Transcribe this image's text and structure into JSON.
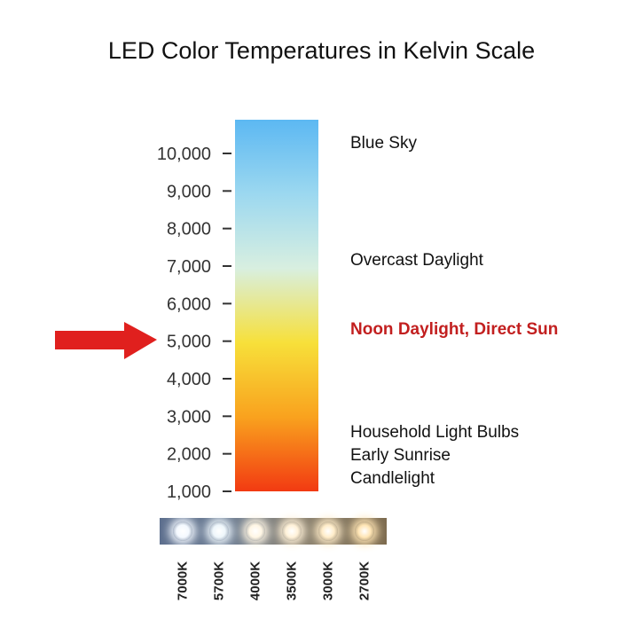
{
  "title": "LED Color Temperatures in Kelvin Scale",
  "scale": {
    "ticks": [
      "10,000",
      "9,000",
      "8,000",
      "7,000",
      "6,000",
      "5,000",
      "4,000",
      "3,000",
      "2,000",
      "1,000"
    ],
    "range_kelvin": [
      1000,
      10000
    ],
    "gradient_colors": [
      "#5cb8f2",
      "#9cd8f0",
      "#d8efe0",
      "#f7e03a",
      "#f9a21e",
      "#f23a12"
    ],
    "highlight_value": 5000,
    "arrow_color": "#e0201e"
  },
  "annotations": [
    {
      "text": "Blue Sky",
      "highlight": false
    },
    {
      "text": "Overcast Daylight",
      "highlight": false
    },
    {
      "text": "Noon Daylight, Direct Sun",
      "highlight": true
    },
    {
      "text": "Household Light Bulbs",
      "highlight": false
    },
    {
      "text": "Early Sunrise",
      "highlight": false
    },
    {
      "text": "Candlelight",
      "highlight": false
    }
  ],
  "led_strip": {
    "labels": [
      "7000K",
      "5700K",
      "4000K",
      "3500K",
      "3000K",
      "2700K"
    ],
    "colors": [
      "#f4f9ff",
      "#eef6fb",
      "#fff6e4",
      "#fff1d8",
      "#ffecc8",
      "#ffe5b4"
    ]
  }
}
